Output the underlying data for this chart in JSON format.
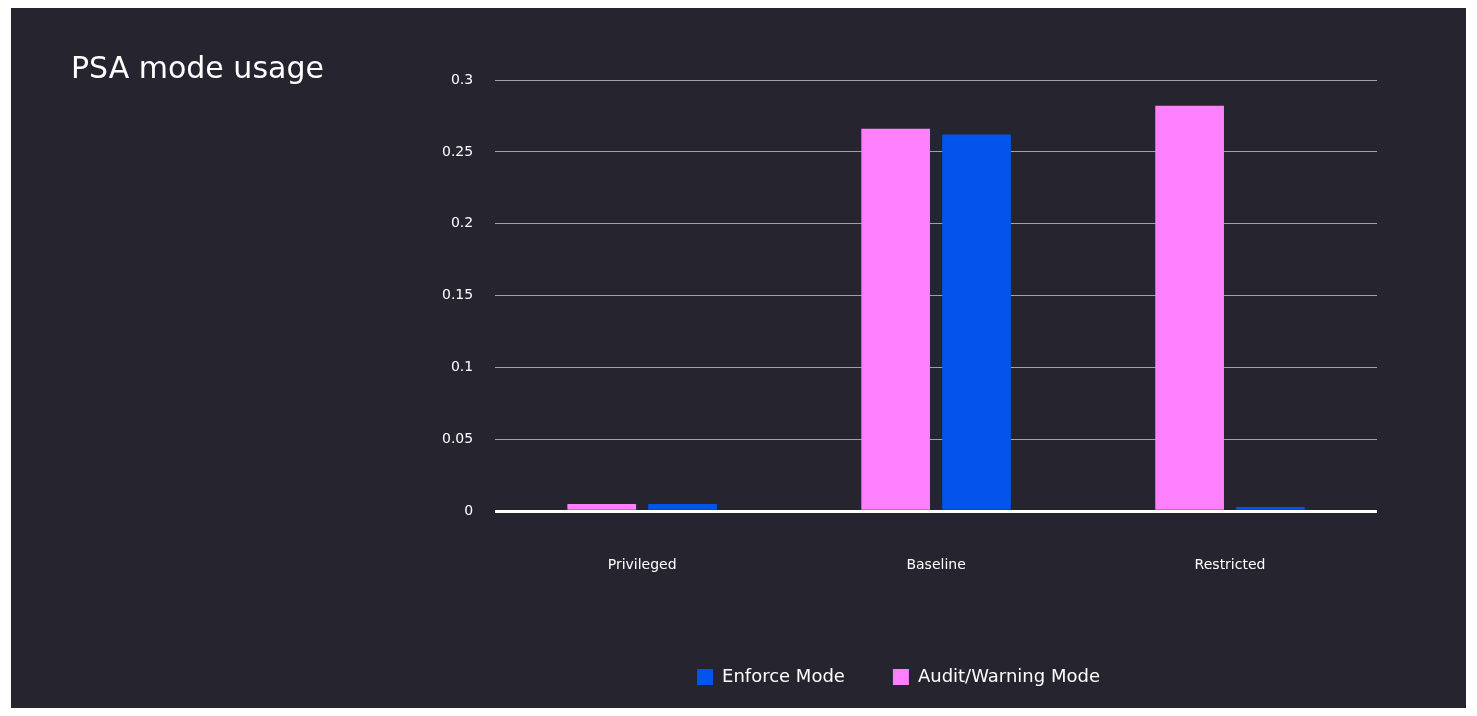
{
  "chart_data": {
    "type": "bar",
    "title": "PSA mode usage",
    "categories": [
      "Privileged",
      "Baseline",
      "Restricted"
    ],
    "series": [
      {
        "name": "Audit/Warning Mode",
        "color": "#ff80ff",
        "values": [
          0.005,
          0.266,
          0.282
        ]
      },
      {
        "name": "Enforce Mode",
        "color": "#0254ec",
        "values": [
          0.005,
          0.262,
          0.003
        ]
      }
    ],
    "ylim": [
      0,
      0.3
    ],
    "yticks": [
      0,
      0.05,
      0.1,
      0.15,
      0.2,
      0.25,
      0.3
    ],
    "grid": "y",
    "legend": "bottom"
  }
}
